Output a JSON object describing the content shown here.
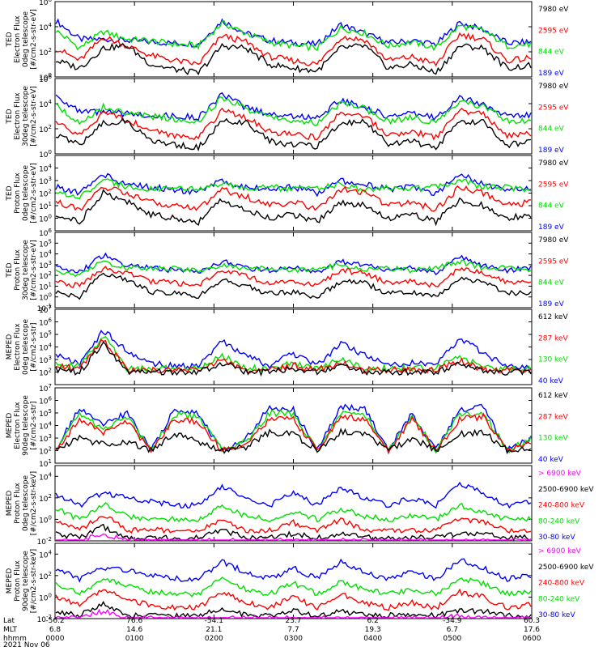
{
  "chart_data": [
    {
      "type": "line",
      "ylabel_lines": [
        "TED",
        "Electron Flux",
        "0deg telescope",
        "[#/cm2-s-str-eV]"
      ],
      "y_scale": "log",
      "ylim": [
        1,
        1000000
      ],
      "y_ticks": [
        "10^6",
        "10^4",
        "10^2",
        "10^0"
      ],
      "series": [
        {
          "name": "7980 eV",
          "color": "#000000",
          "values": [
            20,
            5,
            200,
            300,
            10,
            4,
            2,
            300,
            200,
            10,
            5,
            3,
            200,
            300,
            5,
            10,
            2,
            300,
            200,
            5,
            8
          ]
        },
        {
          "name": "2595 eV",
          "color": "#ff0000",
          "values": [
            200,
            20,
            1500,
            300,
            50,
            20,
            10,
            2000,
            600,
            40,
            20,
            10,
            1500,
            900,
            20,
            40,
            10,
            2500,
            1000,
            20,
            30
          ]
        },
        {
          "name": "844 eV",
          "color": "#00e000",
          "values": [
            5000,
            200,
            4000,
            1000,
            800,
            400,
            300,
            20000,
            3000,
            600,
            300,
            200,
            8000,
            3000,
            300,
            600,
            200,
            12000,
            5000,
            300,
            400
          ]
        },
        {
          "name": "189 eV",
          "color": "#0000ff",
          "values": [
            30000,
            1000,
            1000,
            800,
            600,
            500,
            400,
            30000,
            3000,
            800,
            500,
            400,
            15000,
            3000,
            500,
            800,
            400,
            20000,
            6000,
            500,
            600
          ]
        }
      ]
    },
    {
      "type": "line",
      "ylabel_lines": [
        "TED",
        "Electron Flux",
        "30deg telescope",
        "[#/cm2-s-str-eV]"
      ],
      "y_scale": "log",
      "ylim": [
        1,
        1000000
      ],
      "y_ticks": [
        "10^6",
        "10^4",
        "10^2",
        "10^0"
      ],
      "series": [
        {
          "name": "7980 eV",
          "color": "#000000",
          "values": [
            30,
            5,
            300,
            400,
            10,
            5,
            3,
            400,
            300,
            10,
            5,
            4,
            300,
            400,
            5,
            10,
            3,
            400,
            300,
            5,
            8
          ]
        },
        {
          "name": "2595 eV",
          "color": "#ff0000",
          "values": [
            300,
            30,
            2000,
            500,
            80,
            30,
            20,
            3000,
            800,
            60,
            30,
            20,
            2000,
            1200,
            30,
            60,
            20,
            3000,
            1500,
            30,
            40
          ]
        },
        {
          "name": "844 eV",
          "color": "#00e000",
          "values": [
            8000,
            300,
            6000,
            1500,
            1000,
            600,
            400,
            30000,
            4000,
            800,
            400,
            300,
            10000,
            4000,
            400,
            800,
            300,
            15000,
            6000,
            400,
            500
          ]
        },
        {
          "name": "189 eV",
          "color": "#0000ff",
          "values": [
            50000,
            2000,
            2000,
            1500,
            1200,
            1000,
            800,
            50000,
            5000,
            1500,
            1000,
            800,
            20000,
            5000,
            1000,
            1500,
            800,
            30000,
            8000,
            1000,
            1200
          ]
        }
      ]
    },
    {
      "type": "line",
      "ylabel_lines": [
        "TED",
        "Proton Flux",
        "0deg telescope",
        "[#/cm2-s-str-eV]"
      ],
      "y_scale": "log",
      "ylim": [
        0.1,
        100000
      ],
      "y_ticks": [
        "10^4",
        "10^3",
        "10^2",
        "10^1",
        "10^0"
      ],
      "series": [
        {
          "name": "7980 eV",
          "color": "#000000",
          "values": [
            2,
            0.5,
            100,
            20,
            2,
            1,
            0.5,
            30,
            5,
            1,
            2,
            0.5,
            20,
            10,
            1,
            2,
            0.5,
            30,
            10,
            1,
            2
          ]
        },
        {
          "name": "2595 eV",
          "color": "#ff0000",
          "values": [
            20,
            5,
            300,
            100,
            20,
            10,
            5,
            200,
            50,
            10,
            20,
            5,
            200,
            100,
            10,
            20,
            5,
            300,
            100,
            10,
            20
          ]
        },
        {
          "name": "844 eV",
          "color": "#00e000",
          "values": [
            100,
            50,
            1000,
            300,
            200,
            300,
            200,
            500,
            200,
            300,
            200,
            300,
            500,
            200,
            300,
            200,
            300,
            1000,
            300,
            300,
            200
          ]
        },
        {
          "name": "189 eV",
          "color": "#0000ff",
          "values": [
            300,
            100,
            3000,
            500,
            300,
            200,
            100,
            1000,
            300,
            200,
            300,
            100,
            1000,
            500,
            200,
            300,
            100,
            3000,
            500,
            200,
            300
          ]
        }
      ]
    },
    {
      "type": "line",
      "ylabel_lines": [
        "TED",
        "Proton Flux",
        "30deg telescope",
        "[#/cm2-s-str-eV]"
      ],
      "y_scale": "log",
      "ylim": [
        0.1,
        1000000
      ],
      "y_ticks": [
        "10^6",
        "10^5",
        "10^4",
        "10^3",
        "10^2",
        "10^1",
        "10^0",
        "10^-1"
      ],
      "series": [
        {
          "name": "7980 eV",
          "color": "#000000",
          "values": [
            3,
            1,
            200,
            30,
            3,
            2,
            1,
            50,
            10,
            2,
            3,
            1,
            30,
            20,
            2,
            3,
            1,
            50,
            20,
            2,
            3
          ]
        },
        {
          "name": "2595 eV",
          "color": "#ff0000",
          "values": [
            30,
            10,
            500,
            150,
            30,
            20,
            10,
            300,
            80,
            20,
            30,
            10,
            300,
            150,
            20,
            30,
            10,
            500,
            150,
            20,
            30
          ]
        },
        {
          "name": "844 eV",
          "color": "#00e000",
          "values": [
            200,
            100,
            2000,
            500,
            400,
            500,
            300,
            800,
            400,
            500,
            300,
            500,
            800,
            400,
            500,
            300,
            500,
            2000,
            500,
            500,
            300
          ]
        },
        {
          "name": "189 eV",
          "color": "#0000ff",
          "values": [
            500,
            200,
            8000,
            800,
            500,
            300,
            200,
            2000,
            500,
            300,
            500,
            200,
            2000,
            800,
            300,
            500,
            200,
            5000,
            800,
            300,
            500
          ]
        }
      ]
    },
    {
      "type": "line",
      "ylabel_lines": [
        "MEPED",
        "Electron Flux",
        "0deg telescope",
        "[#/cm2-s-str]"
      ],
      "y_scale": "log",
      "ylim": [
        10,
        10000000
      ],
      "y_ticks": [
        "10^7",
        "10^6",
        "10^5",
        "10^4",
        "10^3",
        "10^2"
      ],
      "series": [
        {
          "name": "612 keV",
          "color": "#000000",
          "values": [
            150,
            100,
            20000,
            100,
            100,
            100,
            100,
            500,
            100,
            100,
            200,
            100,
            300,
            100,
            100,
            100,
            100,
            500,
            100,
            100,
            100
          ]
        },
        {
          "name": "287 keV",
          "color": "#ff0000",
          "values": [
            300,
            200,
            40000,
            150,
            150,
            150,
            150,
            800,
            150,
            150,
            300,
            150,
            500,
            150,
            150,
            150,
            150,
            800,
            150,
            150,
            150
          ]
        },
        {
          "name": "130 keV",
          "color": "#00e000",
          "values": [
            400,
            300,
            80000,
            200,
            200,
            200,
            200,
            2000,
            200,
            200,
            500,
            200,
            1000,
            200,
            200,
            200,
            200,
            2000,
            200,
            200,
            200
          ]
        },
        {
          "name": "40 keV",
          "color": "#0000ff",
          "values": [
            3000,
            500,
            200000,
            5000,
            500,
            300,
            300,
            30000,
            2000,
            300,
            3000,
            300,
            20000,
            2000,
            300,
            500,
            300,
            50000,
            3000,
            300,
            300
          ]
        }
      ]
    },
    {
      "type": "line",
      "ylabel_lines": [
        "MEPED",
        "Electron Flux",
        "90deg telescope",
        "[#/cm2-s-str]"
      ],
      "y_scale": "log",
      "ylim": [
        10,
        10000000
      ],
      "y_ticks": [
        "10^7",
        "10^6",
        "10^5",
        "10^4",
        "10^3",
        "10^2",
        "10^1"
      ],
      "series": [
        {
          "name": "612 keV",
          "color": "#000000",
          "values": [
            100,
            1000,
            300,
            500,
            100,
            2000,
            500,
            100,
            200,
            3000,
            2000,
            100,
            3000,
            2000,
            100,
            1000,
            100,
            2000,
            3000,
            100,
            200
          ]
        },
        {
          "name": "287 keV",
          "color": "#ff0000",
          "values": [
            100,
            30000,
            3000,
            20000,
            100,
            30000,
            20000,
            100,
            300,
            30000,
            30000,
            100,
            50000,
            30000,
            100,
            30000,
            100,
            30000,
            50000,
            100,
            500
          ]
        },
        {
          "name": "130 keV",
          "color": "#00e000",
          "values": [
            100,
            100000,
            5000,
            50000,
            100,
            80000,
            50000,
            100,
            500,
            100000,
            80000,
            100,
            100000,
            80000,
            100,
            50000,
            100,
            80000,
            100000,
            100,
            800
          ]
        },
        {
          "name": "40 keV",
          "color": "#0000ff",
          "values": [
            100,
            300000,
            10000,
            100000,
            100,
            200000,
            100000,
            100,
            1000,
            300000,
            200000,
            100,
            300000,
            200000,
            100,
            100000,
            100,
            200000,
            300000,
            100,
            1000
          ]
        }
      ]
    },
    {
      "type": "line",
      "ylabel_lines": [
        "MEPED",
        "Proton Flux",
        "0deg telescope",
        "[#/cm2-s-str-keV]"
      ],
      "y_scale": "log",
      "ylim": [
        0.01,
        100000
      ],
      "y_ticks": [
        "10^4",
        "10^2",
        "10^0",
        "10^-2"
      ],
      "series": [
        {
          "name": "> 6900 keV",
          "color": "#ff00ff",
          "values": [
            0.01,
            0.01,
            0.05,
            0.01,
            0.01,
            0.01,
            0.01,
            0.01,
            0.01,
            0.01,
            0.01,
            0.01,
            0.01,
            0.01,
            0.01,
            0.01,
            0.01,
            0.01,
            0.01,
            0.01,
            0.01
          ]
        },
        {
          "name": "2500-6900 keV",
          "color": "#000000",
          "values": [
            0.05,
            0.02,
            0.2,
            0.02,
            0.02,
            0.02,
            0.02,
            0.1,
            0.02,
            0.02,
            0.05,
            0.02,
            0.05,
            0.02,
            0.02,
            0.02,
            0.02,
            0.05,
            0.05,
            0.02,
            0.02
          ]
        },
        {
          "name": "240-800 keV",
          "color": "#ff0000",
          "values": [
            1,
            0.1,
            3,
            0.1,
            0.1,
            0.1,
            0.1,
            1,
            0.1,
            0.1,
            0.5,
            0.1,
            1,
            0.1,
            0.1,
            0.1,
            0.1,
            1,
            0.5,
            0.1,
            0.1
          ]
        },
        {
          "name": "80-240 keV",
          "color": "#00e000",
          "values": [
            10,
            1,
            30,
            2,
            1,
            1,
            1,
            20,
            2,
            1,
            5,
            1,
            10,
            2,
            1,
            2,
            1,
            20,
            5,
            1,
            1
          ]
        },
        {
          "name": "30-80 keV",
          "color": "#0000ff",
          "values": [
            200,
            20,
            300,
            100,
            50,
            20,
            20,
            1000,
            100,
            20,
            300,
            20,
            1000,
            100,
            20,
            100,
            20,
            2000,
            300,
            20,
            50
          ]
        }
      ]
    },
    {
      "type": "line",
      "ylabel_lines": [
        "MEPED",
        "Proton Flux",
        "90deg telescope",
        "[#/cm2-s-str-keV]"
      ],
      "y_scale": "log",
      "ylim": [
        0.01,
        100000
      ],
      "y_ticks": [
        "10^4",
        "10^2",
        "10^0",
        "10^-2"
      ],
      "series": [
        {
          "name": "> 6900 keV",
          "color": "#ff00ff",
          "values": [
            0.01,
            0.01,
            0.05,
            0.01,
            0.01,
            0.01,
            0.01,
            0.01,
            0.01,
            0.01,
            0.01,
            0.01,
            0.01,
            0.01,
            0.01,
            0.01,
            0.01,
            0.02,
            0.01,
            0.01,
            0.01
          ]
        },
        {
          "name": "2500-6900 keV",
          "color": "#000000",
          "values": [
            0.05,
            0.02,
            0.3,
            0.02,
            0.02,
            0.02,
            0.02,
            0.1,
            0.02,
            0.02,
            0.05,
            0.02,
            0.05,
            0.02,
            0.02,
            0.02,
            0.02,
            0.05,
            0.05,
            0.02,
            0.02
          ]
        },
        {
          "name": "240-800 keV",
          "color": "#ff0000",
          "values": [
            1,
            0.2,
            5,
            0.5,
            0.2,
            0.1,
            0.1,
            3,
            0.3,
            0.1,
            1,
            0.1,
            2,
            0.3,
            0.1,
            0.3,
            0.1,
            3,
            1,
            0.1,
            0.2
          ]
        },
        {
          "name": "80-240 keV",
          "color": "#00e000",
          "values": [
            20,
            2,
            50,
            10,
            3,
            2,
            2,
            50,
            5,
            2,
            20,
            2,
            30,
            5,
            2,
            5,
            2,
            50,
            20,
            2,
            3
          ]
        },
        {
          "name": "30-80 keV",
          "color": "#0000ff",
          "values": [
            500,
            50,
            500,
            300,
            100,
            50,
            50,
            2000,
            200,
            50,
            500,
            50,
            2000,
            200,
            50,
            200,
            50,
            3000,
            500,
            50,
            100
          ]
        }
      ]
    }
  ],
  "x_axis": {
    "row_labels": [
      "Lat",
      "MLT",
      "hhmm"
    ],
    "date": "2021 Nov 06",
    "ticks": [
      {
        "lat": "-56.2",
        "mlt": "6.8",
        "hhmm": "0000"
      },
      {
        "lat": "76.6",
        "mlt": "14.6",
        "hhmm": "0100"
      },
      {
        "lat": "-54.1",
        "mlt": "21.1",
        "hhmm": "0200"
      },
      {
        "lat": "23.7",
        "mlt": "7.7",
        "hhmm": "0300"
      },
      {
        "lat": "6.2",
        "mlt": "19.3",
        "hhmm": "0400"
      },
      {
        "lat": "-34.9",
        "mlt": "6.7",
        "hhmm": "0500"
      },
      {
        "lat": "60.3",
        "mlt": "17.6",
        "hhmm": "0600"
      }
    ]
  }
}
